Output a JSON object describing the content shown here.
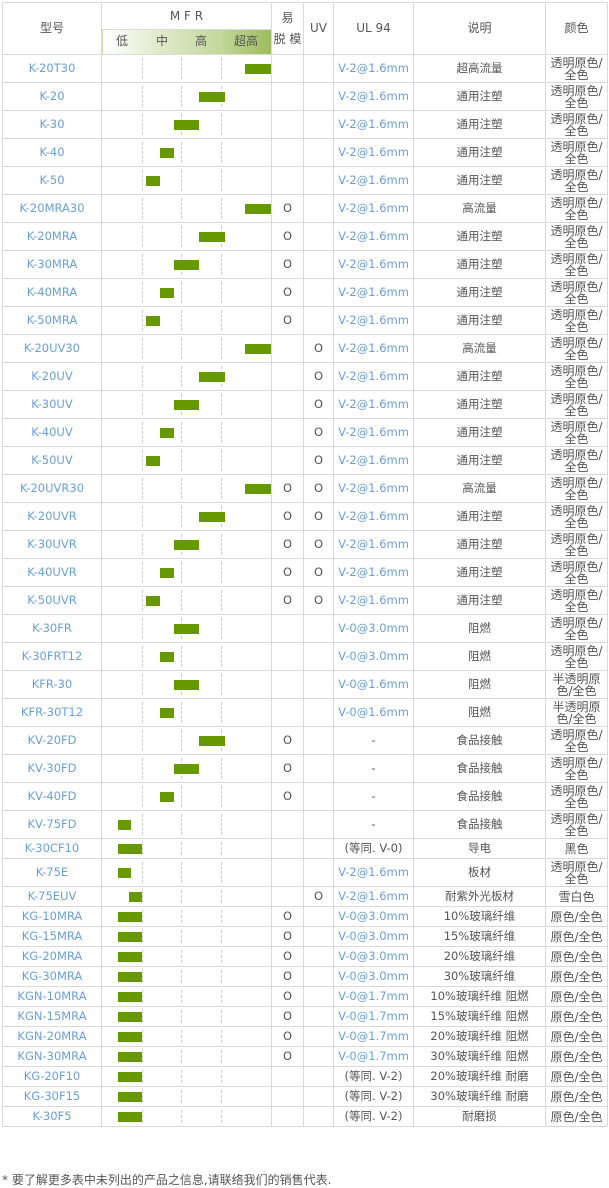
{
  "header": {
    "model": "型号",
    "mfr": "M F R",
    "mfr_levels": [
      "低",
      "中",
      "高",
      "超高"
    ],
    "release": "易\n脱 模",
    "release_top": "易",
    "release_bottom": "脱 模",
    "uv": "UV",
    "ul94": "UL 94",
    "desc": "说明",
    "color": "颜色"
  },
  "colors": {
    "bar": "#669900",
    "model_text": "#6a9fd8",
    "border": "#d9d9d9",
    "header_gradient_end": "#9dbc5c"
  },
  "rows": [
    {
      "model": "K-20T30",
      "mfr_range": [
        0.847,
        1.0
      ],
      "release": "",
      "uv": "",
      "ul94": "V-2@1.6mm",
      "desc": "超高流量",
      "color": "透明原色/全色"
    },
    {
      "model": "K-20",
      "mfr_range": [
        0.576,
        0.729
      ],
      "release": "",
      "uv": "",
      "ul94": "V-2@1.6mm",
      "desc": "通用注塑",
      "color": "透明原色/全色"
    },
    {
      "model": "K-30",
      "mfr_range": [
        0.424,
        0.576
      ],
      "release": "",
      "uv": "",
      "ul94": "V-2@1.6mm",
      "desc": "通用注塑",
      "color": "透明原色/全色"
    },
    {
      "model": "K-40",
      "mfr_range": [
        0.341,
        0.424
      ],
      "release": "",
      "uv": "",
      "ul94": "V-2@1.6mm",
      "desc": "通用注塑",
      "color": "透明原色/全色"
    },
    {
      "model": "K-50",
      "mfr_range": [
        0.259,
        0.341
      ],
      "release": "",
      "uv": "",
      "ul94": "V-2@1.6mm",
      "desc": "通用注塑",
      "color": "透明原色/全色"
    },
    {
      "model": "K-20MRA30",
      "mfr_range": [
        0.847,
        1.0
      ],
      "release": "O",
      "uv": "",
      "ul94": "V-2@1.6mm",
      "desc": "高流量",
      "color": "透明原色/全色"
    },
    {
      "model": "K-20MRA",
      "mfr_range": [
        0.576,
        0.729
      ],
      "release": "O",
      "uv": "",
      "ul94": "V-2@1.6mm",
      "desc": "通用注塑",
      "color": "透明原色/全色"
    },
    {
      "model": "K-30MRA",
      "mfr_range": [
        0.424,
        0.576
      ],
      "release": "O",
      "uv": "",
      "ul94": "V-2@1.6mm",
      "desc": "通用注塑",
      "color": "透明原色/全色"
    },
    {
      "model": "K-40MRA",
      "mfr_range": [
        0.341,
        0.424
      ],
      "release": "O",
      "uv": "",
      "ul94": "V-2@1.6mm",
      "desc": "通用注塑",
      "color": "透明原色/全色"
    },
    {
      "model": "K-50MRA",
      "mfr_range": [
        0.259,
        0.341
      ],
      "release": "O",
      "uv": "",
      "ul94": "V-2@1.6mm",
      "desc": "通用注塑",
      "color": "透明原色/全色"
    },
    {
      "model": "K-20UV30",
      "mfr_range": [
        0.847,
        1.0
      ],
      "release": "",
      "uv": "O",
      "ul94": "V-2@1.6mm",
      "desc": "高流量",
      "color": "透明原色/全色"
    },
    {
      "model": "K-20UV",
      "mfr_range": [
        0.576,
        0.729
      ],
      "release": "",
      "uv": "O",
      "ul94": "V-2@1.6mm",
      "desc": "通用注塑",
      "color": "透明原色/全色"
    },
    {
      "model": "K-30UV",
      "mfr_range": [
        0.424,
        0.576
      ],
      "release": "",
      "uv": "O",
      "ul94": "V-2@1.6mm",
      "desc": "通用注塑",
      "color": "透明原色/全色"
    },
    {
      "model": "K-40UV",
      "mfr_range": [
        0.341,
        0.424
      ],
      "release": "",
      "uv": "O",
      "ul94": "V-2@1.6mm",
      "desc": "通用注塑",
      "color": "透明原色/全色"
    },
    {
      "model": "K-50UV",
      "mfr_range": [
        0.259,
        0.341
      ],
      "release": "",
      "uv": "O",
      "ul94": "V-2@1.6mm",
      "desc": "通用注塑",
      "color": "透明原色/全色"
    },
    {
      "model": "K-20UVR30",
      "mfr_range": [
        0.847,
        1.0
      ],
      "release": "O",
      "uv": "O",
      "ul94": "V-2@1.6mm",
      "desc": "高流量",
      "color": "透明原色/全色"
    },
    {
      "model": "K-20UVR",
      "mfr_range": [
        0.576,
        0.729
      ],
      "release": "O",
      "uv": "O",
      "ul94": "V-2@1.6mm",
      "desc": "通用注塑",
      "color": "透明原色/全色"
    },
    {
      "model": "K-30UVR",
      "mfr_range": [
        0.424,
        0.576
      ],
      "release": "O",
      "uv": "O",
      "ul94": "V-2@1.6mm",
      "desc": "通用注塑",
      "color": "透明原色/全色"
    },
    {
      "model": "K-40UVR",
      "mfr_range": [
        0.341,
        0.424
      ],
      "release": "O",
      "uv": "O",
      "ul94": "V-2@1.6mm",
      "desc": "通用注塑",
      "color": "透明原色/全色"
    },
    {
      "model": "K-50UVR",
      "mfr_range": [
        0.259,
        0.341
      ],
      "release": "O",
      "uv": "O",
      "ul94": "V-2@1.6mm",
      "desc": "通用注塑",
      "color": "透明原色/全色"
    },
    {
      "model": "K-30FR",
      "mfr_range": [
        0.424,
        0.576
      ],
      "release": "",
      "uv": "",
      "ul94": "V-0@3.0mm",
      "desc": "阻燃",
      "color": "透明原色/全色"
    },
    {
      "model": "K-30FRT12",
      "mfr_range": [
        0.341,
        0.424
      ],
      "release": "",
      "uv": "",
      "ul94": "V-0@3.0mm",
      "desc": "阻燃",
      "color": "透明原色/全色"
    },
    {
      "model": "KFR-30",
      "mfr_range": [
        0.424,
        0.576
      ],
      "release": "",
      "uv": "",
      "ul94": "V-0@1.6mm",
      "desc": "阻燃",
      "color": "半透明原色/全色"
    },
    {
      "model": "KFR-30T12",
      "mfr_range": [
        0.341,
        0.424
      ],
      "release": "",
      "uv": "",
      "ul94": "V-0@1.6mm",
      "desc": "阻燃",
      "color": "半透明原色/全色"
    },
    {
      "model": "KV-20FD",
      "mfr_range": [
        0.576,
        0.729
      ],
      "release": "O",
      "uv": "",
      "ul94": "-",
      "desc": "食品接触",
      "color": "透明原色/全色"
    },
    {
      "model": "KV-30FD",
      "mfr_range": [
        0.424,
        0.576
      ],
      "release": "O",
      "uv": "",
      "ul94": "-",
      "desc": "食品接触",
      "color": "透明原色/全色"
    },
    {
      "model": "KV-40FD",
      "mfr_range": [
        0.341,
        0.424
      ],
      "release": "O",
      "uv": "",
      "ul94": "-",
      "desc": "食品接触",
      "color": "透明原色/全色"
    },
    {
      "model": "KV-75FD",
      "mfr_range": [
        0.094,
        0.171
      ],
      "release": "",
      "uv": "",
      "ul94": "-",
      "desc": "食品接触",
      "color": "透明原色/全色"
    },
    {
      "model": "K-30CF10",
      "mfr_range": [
        0.094,
        0.235
      ],
      "release": "",
      "uv": "",
      "ul94": "(等同. V-0)",
      "desc": "导电",
      "color": "黑色"
    },
    {
      "model": "K-75E",
      "mfr_range": [
        0.094,
        0.171
      ],
      "release": "",
      "uv": "",
      "ul94": "V-2@1.6mm",
      "desc": "板材",
      "color": "透明原色/全色"
    },
    {
      "model": "K-75EUV",
      "mfr_range": [
        0.159,
        0.235
      ],
      "release": "",
      "uv": "O",
      "ul94": "V-2@1.6mm",
      "desc": "耐紫外光板材",
      "color": "雪白色"
    },
    {
      "model": "KG-10MRA",
      "mfr_range": [
        0.094,
        0.235
      ],
      "release": "O",
      "uv": "",
      "ul94": "V-0@3.0mm",
      "desc": "10%玻璃纤维",
      "color": "原色/全色"
    },
    {
      "model": "KG-15MRA",
      "mfr_range": [
        0.094,
        0.235
      ],
      "release": "O",
      "uv": "",
      "ul94": "V-0@3.0mm",
      "desc": "15%玻璃纤维",
      "color": "原色/全色"
    },
    {
      "model": "KG-20MRA",
      "mfr_range": [
        0.094,
        0.235
      ],
      "release": "O",
      "uv": "",
      "ul94": "V-0@3.0mm",
      "desc": "20%玻璃纤维",
      "color": "原色/全色"
    },
    {
      "model": "KG-30MRA",
      "mfr_range": [
        0.094,
        0.235
      ],
      "release": "O",
      "uv": "",
      "ul94": "V-0@3.0mm",
      "desc": "30%玻璃纤维",
      "color": "原色/全色"
    },
    {
      "model": "KGN-10MRA",
      "mfr_range": [
        0.094,
        0.235
      ],
      "release": "O",
      "uv": "",
      "ul94": "V-0@1.7mm",
      "desc": "10%玻璃纤维 阻燃",
      "color": "原色/全色"
    },
    {
      "model": "KGN-15MRA",
      "mfr_range": [
        0.094,
        0.235
      ],
      "release": "O",
      "uv": "",
      "ul94": "V-0@1.7mm",
      "desc": "15%玻璃纤维 阻燃",
      "color": "原色/全色"
    },
    {
      "model": "KGN-20MRA",
      "mfr_range": [
        0.094,
        0.235
      ],
      "release": "O",
      "uv": "",
      "ul94": "V-0@1.7mm",
      "desc": "20%玻璃纤维 阻燃",
      "color": "原色/全色"
    },
    {
      "model": "KGN-30MRA",
      "mfr_range": [
        0.094,
        0.235
      ],
      "release": "O",
      "uv": "",
      "ul94": "V-0@1.7mm",
      "desc": "30%玻璃纤维 阻燃",
      "color": "原色/全色"
    },
    {
      "model": "KG-20F10",
      "mfr_range": [
        0.094,
        0.235
      ],
      "release": "",
      "uv": "",
      "ul94": "(等同. V-2)",
      "desc": "20%玻璃纤维 耐磨",
      "color": "原色/全色"
    },
    {
      "model": "KG-30F15",
      "mfr_range": [
        0.094,
        0.235
      ],
      "release": "",
      "uv": "",
      "ul94": "(等同. V-2)",
      "desc": "30%玻璃纤维 耐磨",
      "color": "原色/全色"
    },
    {
      "model": "K-30F5",
      "mfr_range": [
        0.094,
        0.235
      ],
      "release": "",
      "uv": "",
      "ul94": "(等同. V-2)",
      "desc": "耐磨损",
      "color": "原色/全色"
    }
  ],
  "footnote": "* 要了解更多表中未列出的产品之信息,请联络我们的销售代表."
}
